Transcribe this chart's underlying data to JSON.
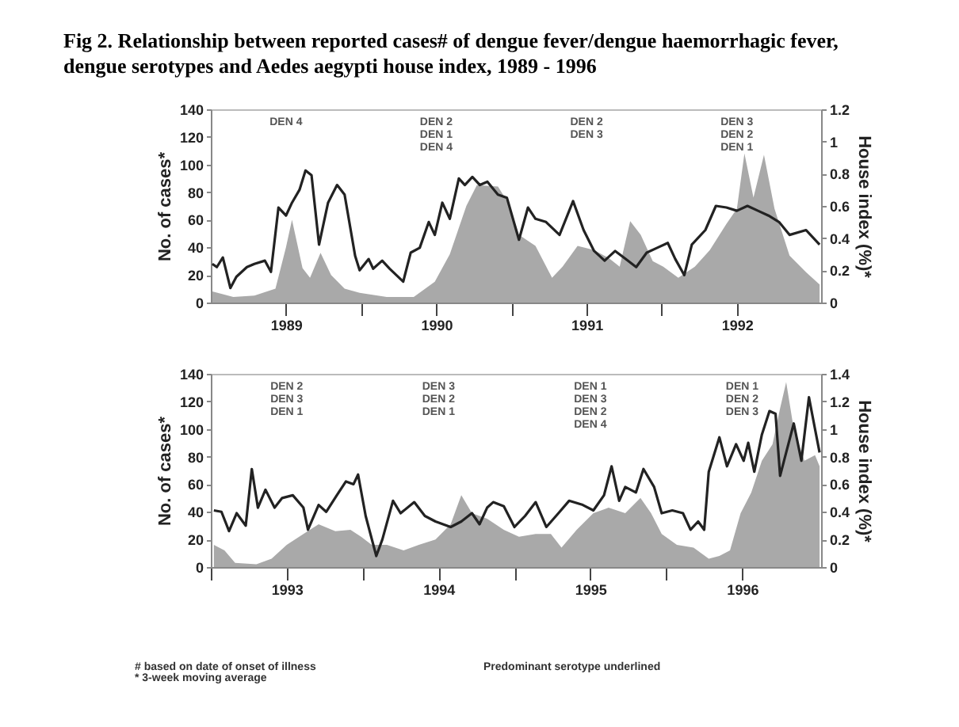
{
  "chart_data": [
    {
      "type": "area",
      "title": "Fig 2.  Relationship between reported cases# of dengue fever/dengue haemorrhagic fever, dengue serotypes and Aedes aegypti house index, 1989 - 1996",
      "ylabel": "No. of cases*",
      "y2label": "House index (%)*",
      "xlim": [
        1989,
        1993.06
      ],
      "xticks": [
        {
          "value": 1989.5,
          "label": "1989"
        },
        {
          "value": 1990,
          "label": null
        },
        {
          "value": 1990.5,
          "label": "1990"
        },
        {
          "value": 1991,
          "label": null
        },
        {
          "value": 1991.5,
          "label": "1991"
        },
        {
          "value": 1992,
          "label": null
        },
        {
          "value": 1992.5,
          "label": "1992"
        }
      ],
      "ylim": [
        0,
        140
      ],
      "yticks": [
        0,
        20,
        40,
        60,
        80,
        100,
        120,
        140
      ],
      "y2lim": [
        0,
        1.2
      ],
      "y2ticks": [
        0,
        0.2,
        0.4,
        0.6,
        0.8,
        1,
        1.2
      ],
      "series": [
        {
          "type": "area",
          "axis": "y",
          "color": "#a9a9a9",
          "x": [
            1989.01,
            1989.15,
            1989.29,
            1989.43,
            1989.5,
            1989.54,
            1989.61,
            1989.66,
            1989.73,
            1989.8,
            1989.89,
            1989.99,
            1990.17,
            1990.35,
            1990.49,
            1990.59,
            1990.7,
            1990.77,
            1990.91,
            1990.98,
            1991.05,
            1991.16,
            1991.27,
            1991.34,
            1991.44,
            1991.55,
            1991.65,
            1991.72,
            1991.79,
            1991.86,
            1991.94,
            1992.01,
            1992.11,
            1992.22,
            1992.32,
            1992.43,
            1992.5,
            1992.55,
            1992.61,
            1992.68,
            1992.75,
            1992.85,
            1992.96,
            1993.05
          ],
          "values": [
            8,
            4,
            5,
            10,
            40,
            60,
            25,
            18,
            36,
            20,
            10,
            7,
            4,
            4,
            15,
            35,
            70,
            85,
            84,
            72,
            49,
            41,
            18,
            26,
            41,
            38,
            32,
            26,
            59,
            49,
            30,
            26,
            18,
            26,
            38,
            57,
            68,
            108,
            76,
            107,
            68,
            34,
            22,
            13
          ]
        },
        {
          "type": "line",
          "axis": "y2",
          "color": "#222222",
          "x": [
            1989.01,
            1989.04,
            1989.08,
            1989.13,
            1989.17,
            1989.24,
            1989.29,
            1989.36,
            1989.4,
            1989.45,
            1989.5,
            1989.54,
            1989.59,
            1989.63,
            1989.67,
            1989.72,
            1989.78,
            1989.84,
            1989.89,
            1989.96,
            1989.99,
            1990.05,
            1990.08,
            1990.14,
            1990.19,
            1990.28,
            1990.33,
            1990.39,
            1990.45,
            1990.49,
            1990.54,
            1990.59,
            1990.65,
            1990.69,
            1990.74,
            1990.79,
            1990.84,
            1990.91,
            1990.97,
            1991.05,
            1991.11,
            1991.16,
            1991.23,
            1991.32,
            1991.41,
            1991.48,
            1991.55,
            1991.62,
            1991.69,
            1991.76,
            1991.83,
            1991.9,
            1991.97,
            1992.04,
            1992.09,
            1992.15,
            1992.2,
            1992.29,
            1992.36,
            1992.43,
            1992.5,
            1992.57,
            1992.64,
            1992.71,
            1992.78,
            1992.85,
            1992.96,
            1993.05
          ],
          "values": [
            0.24,
            0.22,
            0.28,
            0.09,
            0.16,
            0.22,
            0.24,
            0.26,
            0.19,
            0.59,
            0.54,
            0.62,
            0.7,
            0.82,
            0.79,
            0.36,
            0.62,
            0.73,
            0.67,
            0.29,
            0.2,
            0.27,
            0.21,
            0.26,
            0.21,
            0.13,
            0.31,
            0.34,
            0.5,
            0.42,
            0.62,
            0.52,
            0.77,
            0.73,
            0.78,
            0.73,
            0.75,
            0.67,
            0.65,
            0.39,
            0.59,
            0.52,
            0.5,
            0.42,
            0.63,
            0.45,
            0.32,
            0.26,
            0.32,
            0.27,
            0.22,
            0.31,
            0.34,
            0.37,
            0.27,
            0.17,
            0.36,
            0.45,
            0.6,
            0.59,
            0.57,
            0.6,
            0.57,
            0.54,
            0.5,
            0.42,
            0.45,
            0.36
          ]
        }
      ],
      "annotations": [
        "DEN 4",
        "DEN 2\nDEN 1\nDEN 4",
        "DEN 2\nDEN 3",
        "DEN 3\nDEN 2\nDEN 1"
      ]
    },
    {
      "type": "area",
      "ylabel": "No. of cases*",
      "y2label": "House index (%)*",
      "xlim": [
        1993,
        1997.02
      ],
      "xticks": [
        {
          "value": 1993,
          "label": null
        },
        {
          "value": 1993.5,
          "label": "1993"
        },
        {
          "value": 1994,
          "label": null
        },
        {
          "value": 1994.5,
          "label": "1994"
        },
        {
          "value": 1995,
          "label": null
        },
        {
          "value": 1995.5,
          "label": "1995"
        },
        {
          "value": 1996,
          "label": null
        },
        {
          "value": 1996.5,
          "label": "1996"
        }
      ],
      "ylim": [
        0,
        140
      ],
      "yticks": [
        0,
        20,
        40,
        60,
        80,
        100,
        120,
        140
      ],
      "y2lim": [
        0,
        1.4
      ],
      "y2ticks": [
        0,
        0.2,
        0.4,
        0.6,
        0.8,
        1,
        1.2,
        1.4
      ],
      "series": [
        {
          "type": "area",
          "axis": "y",
          "color": "#a9a9a9",
          "x": [
            1993.02,
            1993.09,
            1993.16,
            1993.3,
            1993.4,
            1993.5,
            1993.61,
            1993.71,
            1993.82,
            1993.92,
            1993.99,
            1994.06,
            1994.16,
            1994.27,
            1994.37,
            1994.48,
            1994.58,
            1994.65,
            1994.72,
            1994.82,
            1994.93,
            1995.03,
            1995.14,
            1995.24,
            1995.31,
            1995.41,
            1995.52,
            1995.62,
            1995.73,
            1995.83,
            1995.9,
            1995.97,
            1996.07,
            1996.18,
            1996.28,
            1996.35,
            1996.42,
            1996.49,
            1996.56,
            1996.63,
            1996.7,
            1996.75,
            1996.79,
            1996.84,
            1996.91,
            1996.98,
            1997.01
          ],
          "values": [
            16,
            12,
            3,
            2,
            6,
            16,
            24,
            31,
            26,
            27,
            22,
            16,
            16,
            12,
            16,
            20,
            31,
            52,
            39,
            35,
            27,
            22,
            24,
            24,
            14,
            27,
            39,
            43,
            39,
            50,
            39,
            24,
            16,
            14,
            6,
            8,
            12,
            39,
            54,
            77,
            89,
            115,
            134,
            100,
            77,
            81,
            73
          ]
        },
        {
          "type": "line",
          "axis": "y2",
          "color": "#222222",
          "x": [
            1993.02,
            1993.07,
            1993.12,
            1993.17,
            1993.23,
            1993.27,
            1993.31,
            1993.36,
            1993.42,
            1993.47,
            1993.54,
            1993.61,
            1993.64,
            1993.71,
            1993.76,
            1993.83,
            1993.89,
            1993.94,
            1993.97,
            1994.02,
            1994.09,
            1994.13,
            1994.2,
            1994.25,
            1994.34,
            1994.41,
            1994.48,
            1994.58,
            1994.65,
            1994.72,
            1994.77,
            1994.82,
            1994.86,
            1994.93,
            1995,
            1995.07,
            1995.14,
            1995.21,
            1995.29,
            1995.36,
            1995.45,
            1995.52,
            1995.59,
            1995.64,
            1995.69,
            1995.73,
            1995.8,
            1995.85,
            1995.92,
            1995.97,
            1996.04,
            1996.11,
            1996.16,
            1996.21,
            1996.25,
            1996.28,
            1996.35,
            1996.4,
            1996.46,
            1996.51,
            1996.54,
            1996.58,
            1996.63,
            1996.68,
            1996.72,
            1996.75,
            1996.79,
            1996.84,
            1996.89,
            1996.94,
            1996.98,
            1997.01
          ],
          "values": [
            0.41,
            0.4,
            0.26,
            0.39,
            0.3,
            0.71,
            0.43,
            0.56,
            0.43,
            0.5,
            0.52,
            0.43,
            0.27,
            0.45,
            0.4,
            0.52,
            0.62,
            0.6,
            0.67,
            0.37,
            0.08,
            0.2,
            0.48,
            0.39,
            0.47,
            0.37,
            0.33,
            0.29,
            0.33,
            0.39,
            0.31,
            0.43,
            0.47,
            0.44,
            0.29,
            0.37,
            0.47,
            0.29,
            0.39,
            0.48,
            0.45,
            0.41,
            0.52,
            0.73,
            0.48,
            0.58,
            0.54,
            0.71,
            0.58,
            0.39,
            0.41,
            0.39,
            0.27,
            0.33,
            0.27,
            0.69,
            0.94,
            0.73,
            0.89,
            0.77,
            0.9,
            0.69,
            0.96,
            1.13,
            1.11,
            0.66,
            0.83,
            1.04,
            0.77,
            1.23,
            1,
            0.83
          ]
        }
      ],
      "annotations": [
        "DEN 2\nDEN 3\nDEN 1",
        "DEN 3\nDEN 2\nDEN 1",
        "DEN 1\nDEN 3\nDEN 2\nDEN 4",
        "DEN 1\nDEN 2\nDEN 3",
        "# based on date of onset of illness",
        "* 3-week moving average",
        "Predominant serotype underlined"
      ]
    }
  ]
}
